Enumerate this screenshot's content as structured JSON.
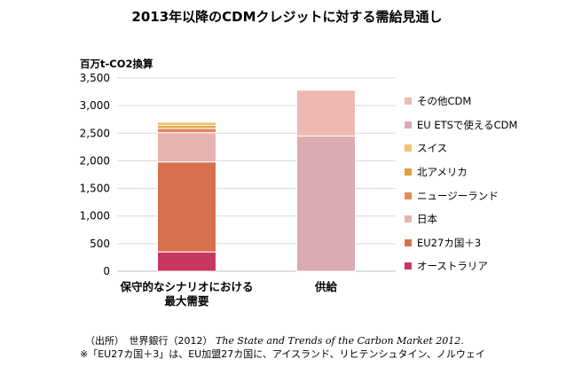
{
  "title": "2013年以降のCDMクレジットに対する需給見通し",
  "chart_data": {
    "type": "bar",
    "stacked": true,
    "ylabel": "百万t-CO2換算",
    "ylim": [
      0,
      3500
    ],
    "yticks": [
      0,
      500,
      1000,
      1500,
      2000,
      2500,
      3000,
      3500
    ],
    "ytick_labels": [
      "0",
      "500",
      "1,000",
      "1,500",
      "2,000",
      "2,500",
      "3,000",
      "3,500"
    ],
    "categories": [
      "保守的なシナリオにおける最大需要",
      "供給"
    ],
    "category_label_lines": [
      [
        "保守的なシナリオにおける",
        "最大需要"
      ],
      [
        "供給"
      ]
    ],
    "legend_position": "right",
    "series": [
      {
        "name": "オーストラリア",
        "color": "#c8375e",
        "values": [
          350,
          0
        ]
      },
      {
        "name": "EU27カ国＋3",
        "color": "#d9704d",
        "values": [
          1630,
          0
        ]
      },
      {
        "name": "日本",
        "color": "#e7b3b1",
        "values": [
          530,
          0
        ]
      },
      {
        "name": "ニュージーランド",
        "color": "#e68a5e",
        "values": [
          80,
          0
        ]
      },
      {
        "name": "北アメリカ",
        "color": "#e39f3b",
        "values": [
          50,
          0
        ]
      },
      {
        "name": "スイス",
        "color": "#f0c36d",
        "values": [
          60,
          0
        ]
      },
      {
        "name": "EU ETSで使えるCDM",
        "color": "#dcaab2",
        "values": [
          0,
          2450
        ]
      },
      {
        "name": "その他CDM",
        "color": "#eeb9b0",
        "values": [
          0,
          830
        ]
      }
    ]
  },
  "source": {
    "prefix": "（出所）　世界銀行（2012）",
    "publication": "The State and Trends of the Carbon Market 2012."
  },
  "note": "※「EU27カ国＋3」は、EU加盟27カ国に、アイスランド、リヒテンシュタイン、ノルウェイ"
}
